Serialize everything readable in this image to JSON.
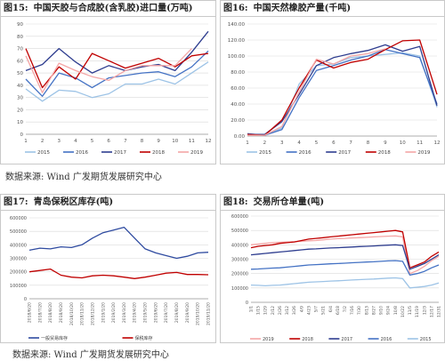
{
  "figures": [
    {
      "num": "图15:",
      "title": "中国天胶与合成胶(含乳胶)进口量(万吨)",
      "chart_data": {
        "type": "line",
        "categories": [
          "1",
          "2",
          "3",
          "4",
          "5",
          "6",
          "7",
          "8",
          "9",
          "10",
          "11",
          "12"
        ],
        "ylim": [
          0,
          90
        ],
        "yticks": [
          "0",
          "10",
          "20",
          "30",
          "40",
          "50",
          "60",
          "70",
          "80",
          "90"
        ],
        "grid": true,
        "legend_position": "bottom",
        "series": [
          {
            "name": "2015",
            "color": "#9dc3e6",
            "values": [
              37,
              27,
              36,
              35,
              30,
              33,
              41,
              41,
              45,
              41,
              50,
              59
            ]
          },
          {
            "name": "2016",
            "color": "#4472c4",
            "values": [
              45,
              31,
              50,
              46,
              38,
              46,
              48,
              50,
              51,
              47,
              55,
              68
            ]
          },
          {
            "name": "2017",
            "color": "#2e3d8f",
            "values": [
              52,
              57,
              70,
              59,
              50,
              56,
              52,
              55,
              57,
              52,
              67,
              84
            ]
          },
          {
            "name": "2018",
            "color": "#c00000",
            "values": [
              70,
              38,
              55,
              45,
              66,
              60,
              54,
              58,
              62,
              55,
              64,
              66
            ]
          },
          {
            "name": "2019",
            "color": "#f4a6a6",
            "values": [
              64,
              34,
              58,
              52,
              47,
              44,
              52,
              56,
              56,
              56,
              70,
              null
            ]
          }
        ]
      }
    },
    {
      "num": "图16:",
      "title": "中国天然橡胶产量(千吨)",
      "chart_data": {
        "type": "line",
        "categories": [
          "1",
          "2",
          "3",
          "4",
          "5",
          "6",
          "7",
          "8",
          "9",
          "10",
          "11",
          "12"
        ],
        "ylim": [
          0,
          140
        ],
        "yticks": [
          "0.00",
          "20.00",
          "40.00",
          "60.00",
          "80.00",
          "100.00",
          "120.00",
          "140.00"
        ],
        "grid": true,
        "legend_position": "bottom",
        "series": [
          {
            "name": "2015",
            "color": "#9dc3e6",
            "values": [
              2,
              1,
              10,
              65,
              88,
              90,
              98,
              100,
              102,
              104,
              100,
              36
            ]
          },
          {
            "name": "2016",
            "color": "#4472c4",
            "values": [
              3,
              1,
              8,
              48,
              82,
              88,
              95,
              100,
              108,
              103,
              98,
              40
            ]
          },
          {
            "name": "2017",
            "color": "#2e3d8f",
            "values": [
              2,
              2,
              18,
              52,
              88,
              98,
              103,
              107,
              114,
              106,
              112,
              38
            ]
          },
          {
            "name": "2018",
            "color": "#c00000",
            "values": [
              2,
              1,
              20,
              60,
              95,
              85,
              92,
              96,
              108,
              119,
              120,
              52
            ]
          },
          {
            "name": "2019",
            "color": "#f4a6a6",
            "values": [
              1,
              1,
              12,
              55,
              96,
              90,
              100,
              103,
              109,
              null,
              null,
              null
            ]
          }
        ]
      }
    },
    {
      "num": "图17:",
      "title": "青岛保税区库存(吨)",
      "chart_data": {
        "type": "line",
        "categories": [
          "2018/6/20",
          "2018/7/20",
          "2018/8/20",
          "2018/9/20",
          "2018/10/20",
          "2018/11/20",
          "2018/12/20",
          "2019/1/20",
          "2019/2/20",
          "2019/3/20",
          "2019/4/20",
          "2019/5/20",
          "2019/6/20",
          "2019/7/20",
          "2019/8/20",
          "2019/9/20",
          "2019/10/20",
          "2019/11/20"
        ],
        "ylim": [
          0,
          600000
        ],
        "yticks": [
          "0",
          "100000",
          "200000",
          "300000",
          "400000",
          "500000",
          "600000"
        ],
        "grid": true,
        "legend_position": "bottom",
        "series": [
          {
            "name": "一般贸易库存",
            "color": "#2f4ba0",
            "values": [
              360000,
              375000,
              370000,
              385000,
              380000,
              400000,
              450000,
              490000,
              510000,
              530000,
              450000,
              370000,
              340000,
              320000,
              300000,
              315000,
              340000,
              345000
            ]
          },
          {
            "name": "保税库存",
            "color": "#c00000",
            "values": [
              200000,
              210000,
              220000,
              175000,
              160000,
              155000,
              170000,
              175000,
              170000,
              160000,
              150000,
              160000,
              175000,
              190000,
              195000,
              180000,
              180000,
              178000
            ]
          }
        ]
      }
    },
    {
      "num": "图18:",
      "title": "交易所仓单量(吨)",
      "chart_data": {
        "type": "line",
        "categories": [
          "1/1",
          "1/15",
          "1/29",
          "2/12",
          "2/26",
          "3/12",
          "3/26",
          "4/9",
          "4/23",
          "5/7",
          "5/21",
          "6/4",
          "6/18",
          "7/2",
          "7/16",
          "7/30",
          "8/13",
          "8/27",
          "9/10",
          "9/24",
          "10/8",
          "10/22",
          "11/5",
          "11/19",
          "12/3",
          "12/17",
          "12/31"
        ],
        "ylim": [
          0,
          600000
        ],
        "yticks": [
          "0",
          "100000",
          "200000",
          "300000",
          "400000",
          "500000",
          "600000"
        ],
        "grid": true,
        "legend_position": "bottom",
        "series": [
          {
            "name": "2019",
            "color": "#f4a6a6",
            "values": [
              400000,
              405000,
              410000,
              415000,
              418000,
              420000,
              422000,
              425000,
              428000,
              430000,
              435000,
              440000,
              443000,
              445000,
              448000,
              450000,
              452000,
              455000,
              458000,
              460000,
              462000,
              455000,
              200000,
              220000,
              250000,
              290000,
              320000
            ]
          },
          {
            "name": "2018",
            "color": "#c00000",
            "values": [
              380000,
              390000,
              395000,
              400000,
              410000,
              415000,
              420000,
              430000,
              440000,
              445000,
              450000,
              455000,
              460000,
              465000,
              470000,
              475000,
              480000,
              485000,
              490000,
              495000,
              500000,
              490000,
              240000,
              260000,
              280000,
              320000,
              350000
            ]
          },
          {
            "name": "2017",
            "color": "#2e3d8f",
            "values": [
              330000,
              335000,
              340000,
              345000,
              350000,
              355000,
              360000,
              365000,
              370000,
              372000,
              375000,
              378000,
              380000,
              382000,
              385000,
              388000,
              390000,
              392000,
              395000,
              398000,
              400000,
              395000,
              230000,
              250000,
              270000,
              300000,
              330000
            ]
          },
          {
            "name": "2016",
            "color": "#4472c4",
            "values": [
              230000,
              232000,
              235000,
              238000,
              240000,
              245000,
              250000,
              255000,
              260000,
              262000,
              265000,
              268000,
              270000,
              272000,
              275000,
              278000,
              280000,
              282000,
              285000,
              288000,
              290000,
              285000,
              190000,
              200000,
              215000,
              240000,
              260000
            ]
          },
          {
            "name": "2015",
            "color": "#9dc3e6",
            "values": [
              120000,
              118000,
              115000,
              118000,
              120000,
              125000,
              130000,
              135000,
              140000,
              142000,
              145000,
              148000,
              150000,
              152000,
              155000,
              158000,
              160000,
              162000,
              165000,
              168000,
              170000,
              165000,
              100000,
              105000,
              110000,
              120000,
              135000
            ]
          }
        ]
      }
    }
  ],
  "sources": {
    "top": "数据来源: Wind 广发期货发展研究中心",
    "bottom": "数据来源: Wind   广发期货发展研究中心"
  }
}
